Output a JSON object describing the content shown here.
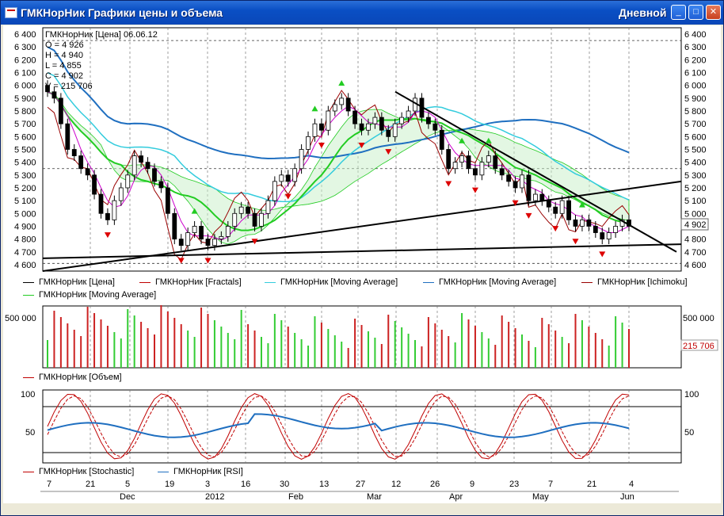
{
  "window": {
    "title": "ГМКНорНик Графики цены и объема",
    "period": "Дневной",
    "buttons": [
      "_",
      "□",
      "✕"
    ]
  },
  "info_box": {
    "header": "ГМКНорНик [Цена] 06.06.12",
    "open": "O = 4 926",
    "high": "H = 4 940",
    "low": "L = 4 855",
    "close": "C = 4 902",
    "volume": "V = 215 706"
  },
  "price_pane": {
    "y_ticks": [
      "6 400",
      "6 300",
      "6 200",
      "6 100",
      "6 000",
      "5 900",
      "5 800",
      "5 700",
      "5 600",
      "5 500",
      "5 400",
      "5 300",
      "5 200",
      "5 100",
      "5 000",
      "4 900",
      "4 800",
      "4 700",
      "4 600"
    ],
    "current_price_label": "4 902",
    "legend": [
      {
        "text": "ГМКНорНик [Цена]",
        "color": "#000000"
      },
      {
        "text": "ГМКНорНик [Fractals]",
        "color": "#c00000"
      },
      {
        "text": "ГМКНорНик [Moving Average]",
        "color": "#33ccdd"
      },
      {
        "text": "ГМКНорНик [Moving Average]",
        "color": "#1f6fc0"
      },
      {
        "text": "ГМКНорНик [Ichimoku]",
        "color": "#990000"
      },
      {
        "text": "ГМКНорНик [Moving Average]",
        "color": "#22cc22"
      }
    ]
  },
  "volume_pane": {
    "y_tick": "500 000",
    "current_volume_label": "215 706",
    "legend": [
      {
        "text": "ГМКНорНик [Объем]",
        "color": "#c00000"
      }
    ]
  },
  "oscillator_pane": {
    "y_ticks": [
      "100",
      "50"
    ],
    "legend": [
      {
        "text": "ГМКНорНик [Stochastic]",
        "color": "#c00000"
      },
      {
        "text": "ГМКНорНик [RSI]",
        "color": "#1f6fc0"
      }
    ]
  },
  "date_axis": {
    "days": [
      "7",
      "21",
      "5",
      "19",
      "3",
      "16",
      "30",
      "13",
      "27",
      "12",
      "26",
      "9",
      "23",
      "7",
      "21",
      "4"
    ],
    "months": [
      "Dec",
      "2012",
      "Feb",
      "Mar",
      "Apr",
      "May",
      "Jun"
    ]
  },
  "chart_data": {
    "type": "candlestick",
    "instrument": "ГМКНорНик",
    "ylim": [
      4550,
      6450
    ],
    "close_series": [
      5950,
      5900,
      5700,
      5500,
      5450,
      5350,
      5300,
      5150,
      5000,
      4950,
      5100,
      5200,
      5300,
      5450,
      5400,
      5350,
      5250,
      5200,
      5000,
      4800,
      4750,
      4850,
      4900,
      4800,
      4750,
      4800,
      4820,
      4900,
      5000,
      5050,
      5000,
      4900,
      5000,
      5100,
      5250,
      5300,
      5250,
      5350,
      5500,
      5600,
      5700,
      5650,
      5800,
      5850,
      5900,
      5800,
      5700,
      5650,
      5700,
      5750,
      5650,
      5600,
      5700,
      5750,
      5800,
      5900,
      5750,
      5700,
      5650,
      5500,
      5350,
      5400,
      5450,
      5350,
      5300,
      5400,
      5450,
      5350,
      5300,
      5250,
      5200,
      5300,
      5100,
      5150,
      5100,
      5050,
      5000,
      5100,
      4950,
      4900,
      4950,
      4900,
      4850,
      4800,
      4850,
      4900,
      4950,
      4900
    ]
  }
}
